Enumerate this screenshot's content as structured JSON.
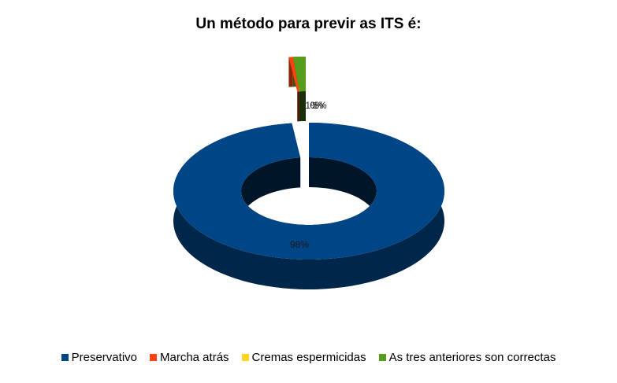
{
  "chart_data": {
    "type": "pie",
    "variant": "3d-donut-exploded",
    "title": "Un método para previr as ITS é:",
    "categories": [
      "Preservativo",
      "Marcha atrás",
      "Cremas espermicidas",
      "As tres anteriores son correctas"
    ],
    "values": [
      98,
      0.5,
      0,
      1.5
    ],
    "data_labels": [
      "98%",
      "1%",
      "0%",
      "1%"
    ],
    "colors": [
      "#004586",
      "#ff420e",
      "#ffd320",
      "#579d1c"
    ],
    "legend_position": "bottom"
  }
}
